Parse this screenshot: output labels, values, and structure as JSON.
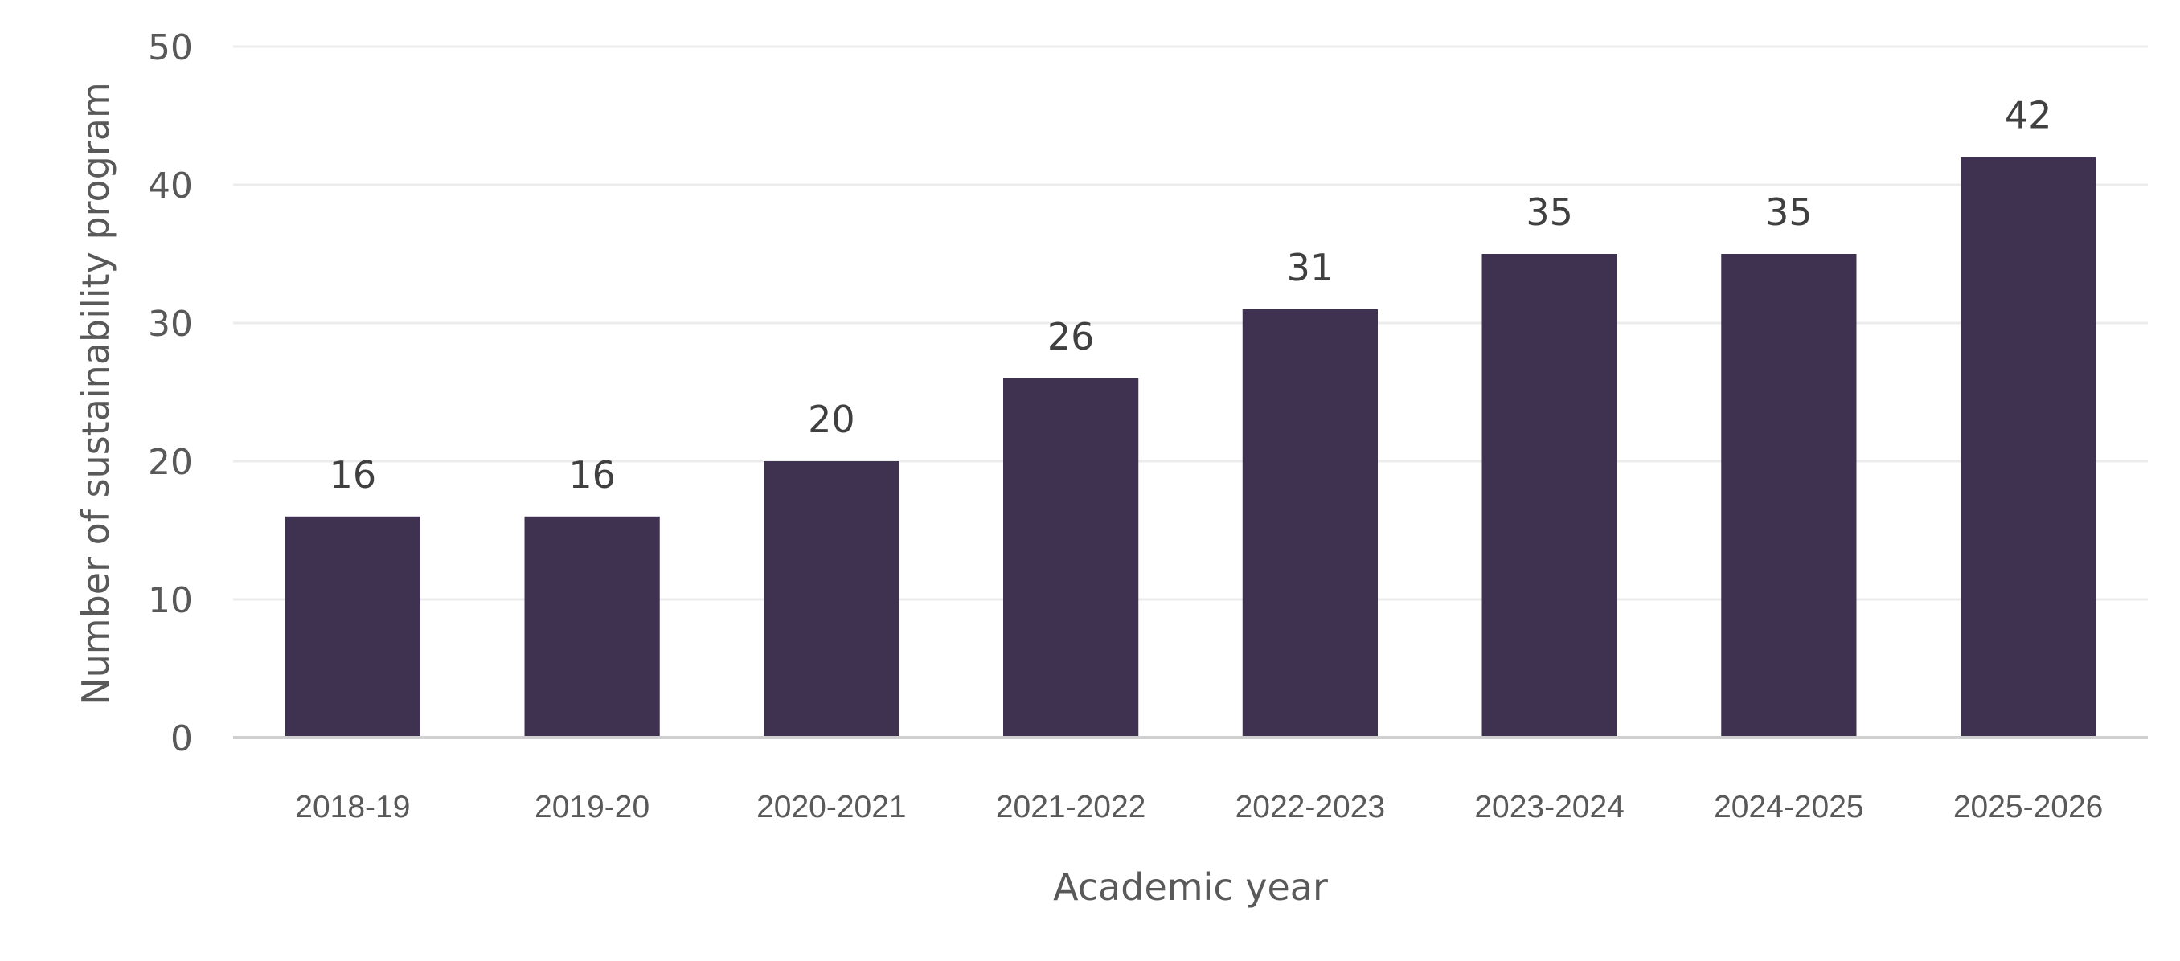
{
  "chart_data": {
    "type": "bar",
    "title": "",
    "xlabel": "Academic year",
    "ylabel": "Number of sustainability program",
    "categories": [
      "2018-19",
      "2019-20",
      "2020-2021",
      "2021-2022",
      "2022-2023",
      "2023-2024",
      "2024-2025",
      "2025-2026"
    ],
    "series": [
      {
        "values": [
          16,
          16,
          20,
          26,
          31,
          35,
          35,
          42
        ]
      }
    ],
    "ylim": [
      0,
      50
    ],
    "yticks": [
      0,
      10,
      20,
      30,
      40,
      50
    ],
    "data_labels": true,
    "grid": true,
    "legend": "none",
    "colors": {
      "bar": "#3f3150",
      "grid": "#ececec",
      "axis": "#d0d0d0"
    }
  }
}
